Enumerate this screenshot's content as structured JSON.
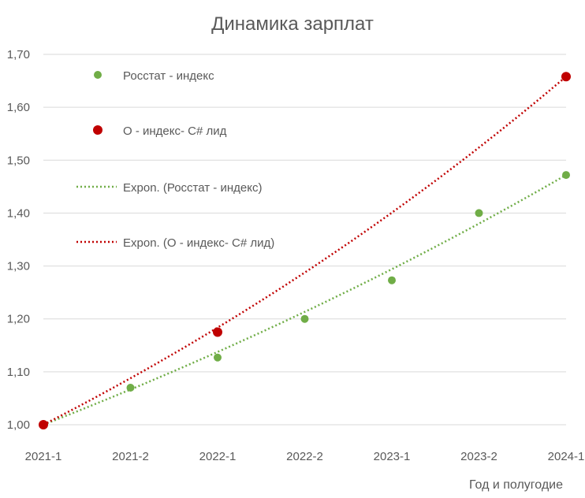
{
  "chart_data": {
    "type": "scatter",
    "title": "Динамика зарплат",
    "xlabel": "Год и полугодие",
    "ylabel": "",
    "categories": [
      "2021-1",
      "2021-2",
      "2022-1",
      "2022-2",
      "2023-1",
      "2023-2",
      "2024-1"
    ],
    "ylim": [
      1.0,
      1.7
    ],
    "yticks": [
      "1,00",
      "1,10",
      "1,20",
      "1,30",
      "1,40",
      "1,50",
      "1,60",
      "1,70"
    ],
    "grid": true,
    "legend_position": "top-left",
    "series": [
      {
        "name": "Росстат - индекс",
        "color": "#70AD47",
        "points": [
          {
            "x": "2021-1",
            "y": 1.0
          },
          {
            "x": "2021-2",
            "y": 1.07
          },
          {
            "x": "2022-1",
            "y": 1.127
          },
          {
            "x": "2022-2",
            "y": 1.2
          },
          {
            "x": "2023-1",
            "y": 1.273
          },
          {
            "x": "2023-2",
            "y": 1.4
          },
          {
            "x": "2024-1",
            "y": 1.472
          }
        ]
      },
      {
        "name": "О - индекс- C# лид",
        "color": "#C00000",
        "points": [
          {
            "x": "2021-1",
            "y": 1.0
          },
          {
            "x": "2022-1",
            "y": 1.175
          },
          {
            "x": "2024-1",
            "y": 1.658
          }
        ]
      }
    ],
    "trendlines": [
      {
        "name": "Expon. (Росстат - индекс)",
        "color": "#70AD47",
        "style": "dotted",
        "from": {
          "x": "2021-1",
          "y": 1.0
        },
        "to": {
          "x": "2024-1",
          "y": 1.472
        }
      },
      {
        "name": "Expon. (О - индекс- C# лид)",
        "color": "#C00000",
        "style": "dotted",
        "from": {
          "x": "2021-1",
          "y": 1.0
        },
        "to": {
          "x": "2024-1",
          "y": 1.658
        }
      }
    ]
  }
}
